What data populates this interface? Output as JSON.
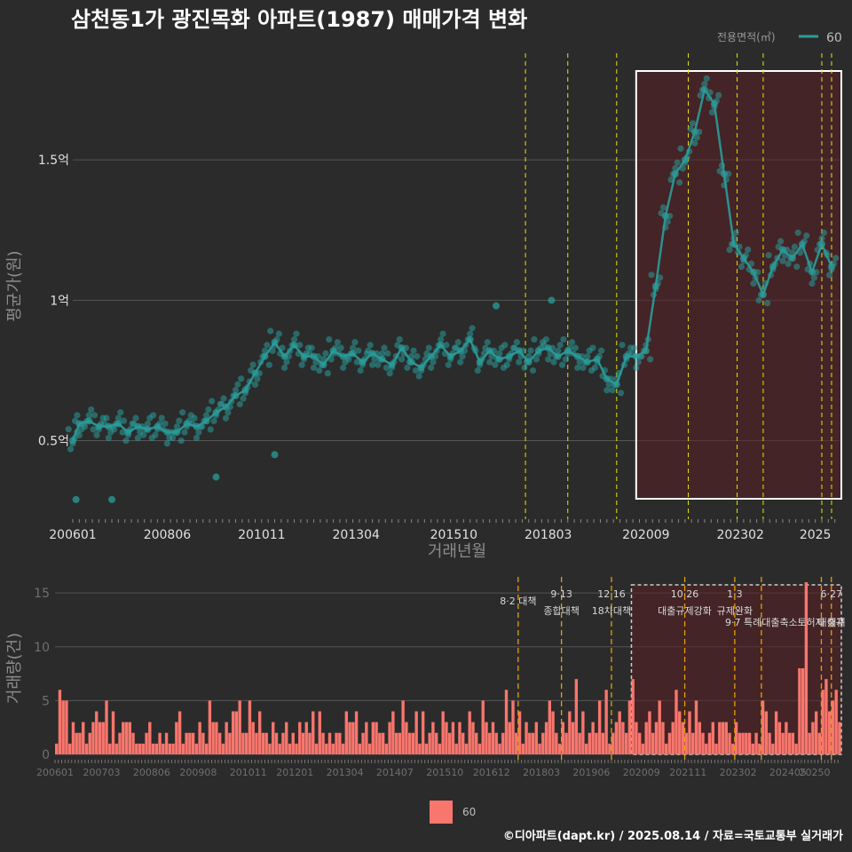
{
  "title": "삼천동1가 광진목화 아파트(1987) 매매가격 변화",
  "legend": {
    "title": "전용면적(㎡)",
    "label": "60"
  },
  "bottom_legend": {
    "label": "60"
  },
  "credit": "©디아파트(dapt.kr) / 2025.08.14 / 자료=국토교통부 실거래가",
  "colors": {
    "line": "#2a9d9b",
    "bar": "#f8766d",
    "highlight": "#5a1f22",
    "policy_line": "#e6e600",
    "policy_line_bottom": "#e69f00"
  },
  "chart_data": [
    {
      "type": "line",
      "xlabel": "거래년월",
      "ylabel": "평균가(원)",
      "x_ticks": [
        "200601",
        "200806",
        "201011",
        "201304",
        "201510",
        "201803",
        "202009",
        "202302",
        "2025"
      ],
      "y_ticks": [
        "0.5억",
        "1억",
        "1.5억"
      ],
      "ylim_eok": [
        0.22,
        1.88
      ],
      "series": [
        {
          "name": "60",
          "x": [
            "2006-01",
            "2006-03",
            "2006-06",
            "2006-09",
            "2006-12",
            "2007-03",
            "2007-06",
            "2007-09",
            "2007-12",
            "2008-03",
            "2008-06",
            "2008-09",
            "2008-12",
            "2009-03",
            "2009-06",
            "2009-09",
            "2009-12",
            "2010-03",
            "2010-06",
            "2010-09",
            "2010-12",
            "2011-03",
            "2011-06",
            "2011-09",
            "2011-12",
            "2012-03",
            "2012-06",
            "2012-09",
            "2012-12",
            "2013-03",
            "2013-06",
            "2013-09",
            "2013-12",
            "2014-03",
            "2014-06",
            "2014-09",
            "2014-12",
            "2015-03",
            "2015-06",
            "2015-09",
            "2015-12",
            "2016-03",
            "2016-06",
            "2016-09",
            "2016-12",
            "2017-03",
            "2017-06",
            "2017-09",
            "2017-12",
            "2018-03",
            "2018-06",
            "2018-09",
            "2018-12",
            "2019-03",
            "2019-06",
            "2019-09",
            "2019-12",
            "2020-03",
            "2020-06",
            "2020-09",
            "2020-12",
            "2021-03",
            "2021-06",
            "2021-09",
            "2021-12",
            "2022-03",
            "2022-06",
            "2022-09",
            "2022-12",
            "2023-03",
            "2023-06",
            "2023-09",
            "2023-12",
            "2024-03",
            "2024-06",
            "2024-09",
            "2024-12",
            "2025-03",
            "2025-06"
          ],
          "values": [
            0.5,
            0.56,
            0.57,
            0.55,
            0.55,
            0.56,
            0.53,
            0.55,
            0.54,
            0.55,
            0.53,
            0.53,
            0.56,
            0.55,
            0.57,
            0.6,
            0.62,
            0.66,
            0.68,
            0.74,
            0.8,
            0.85,
            0.8,
            0.84,
            0.8,
            0.8,
            0.77,
            0.82,
            0.8,
            0.81,
            0.78,
            0.81,
            0.79,
            0.77,
            0.83,
            0.78,
            0.76,
            0.8,
            0.84,
            0.8,
            0.82,
            0.86,
            0.78,
            0.82,
            0.79,
            0.8,
            0.82,
            0.78,
            0.82,
            0.83,
            0.8,
            0.82,
            0.8,
            0.78,
            0.79,
            0.72,
            0.7,
            0.8,
            0.8,
            0.82,
            1.05,
            1.3,
            1.45,
            1.5,
            1.6,
            1.75,
            1.7,
            1.45,
            1.2,
            1.15,
            1.1,
            1.02,
            1.12,
            1.18,
            1.15,
            1.2,
            1.1,
            1.2,
            1.12
          ]
        }
      ],
      "scatter_outliers": [
        {
          "x": "2006-02",
          "y": 0.29
        },
        {
          "x": "2007-01",
          "y": 0.29
        },
        {
          "x": "2009-09",
          "y": 0.37
        },
        {
          "x": "2011-03",
          "y": 0.45
        },
        {
          "x": "2018-04",
          "y": 1.0
        },
        {
          "x": "2016-11",
          "y": 0.98
        }
      ],
      "highlight_range": [
        "2020-06",
        "2025-08"
      ],
      "policy_dates": [
        "2017-08",
        "2018-09",
        "2019-12",
        "2021-10",
        "2023-01",
        "2023-09",
        "2025-03",
        "2025-06"
      ]
    },
    {
      "type": "bar",
      "xlabel": "",
      "ylabel": "거래량(건)",
      "x_ticks": [
        "200601",
        "200703",
        "200806",
        "200908",
        "201011",
        "201201",
        "201304",
        "201407",
        "201510",
        "201612",
        "201803",
        "201906",
        "202009",
        "202111",
        "202302",
        "202405",
        "20250"
      ],
      "y_ticks": [
        "0",
        "5",
        "10",
        "15"
      ],
      "ylim": [
        0,
        16
      ],
      "annotations": [
        {
          "date": "2017-08",
          "line1": "8·2 대책",
          "line2": ""
        },
        {
          "date": "2018-09",
          "line1": "9·13",
          "line2": "종합대책"
        },
        {
          "date": "2019-12",
          "line1": "12·16",
          "line2": "18차대책"
        },
        {
          "date": "2021-10",
          "line1": "10·26",
          "line2": "대출규제강화"
        },
        {
          "date": "2023-01",
          "line1": "1·3",
          "line2": "규제완화"
        },
        {
          "date": "2023-09",
          "line1": "",
          "line2": "9·7 특례대출축소"
        },
        {
          "date": "2025-03",
          "line1": "",
          "line2": "토허제 해제"
        },
        {
          "date": "2025-06",
          "line1": "6·27",
          "line2": "대출규"
        }
      ],
      "series": [
        {
          "name": "60",
          "monthly_counts": [
            1,
            6,
            5,
            5,
            1,
            3,
            2,
            2,
            3,
            1,
            2,
            3,
            4,
            3,
            3,
            5,
            1,
            4,
            1,
            2,
            3,
            3,
            3,
            2,
            1,
            1,
            1,
            2,
            3,
            1,
            1,
            2,
            1,
            2,
            1,
            1,
            3,
            4,
            1,
            2,
            2,
            2,
            1,
            3,
            2,
            1,
            5,
            3,
            3,
            2,
            1,
            3,
            2,
            4,
            4,
            5,
            2,
            2,
            5,
            3,
            2,
            4,
            2,
            2,
            1,
            3,
            2,
            1,
            2,
            3,
            1,
            2,
            1,
            3,
            2,
            3,
            2,
            4,
            1,
            4,
            2,
            1,
            2,
            1,
            2,
            2,
            1,
            4,
            3,
            3,
            4,
            1,
            2,
            3,
            1,
            3,
            3,
            2,
            2,
            1,
            3,
            4,
            2,
            2,
            5,
            3,
            2,
            2,
            4,
            1,
            4,
            1,
            2,
            3,
            2,
            1,
            4,
            3,
            2,
            3,
            1,
            3,
            2,
            1,
            4,
            3,
            2,
            1,
            5,
            3,
            2,
            3,
            2,
            1,
            2,
            6,
            3,
            5,
            2,
            4,
            1,
            3,
            2,
            2,
            3,
            1,
            2,
            3,
            5,
            4,
            2,
            1,
            3,
            2,
            4,
            3,
            7,
            2,
            4,
            1,
            2,
            3,
            2,
            5,
            2,
            6,
            1,
            2,
            3,
            4,
            3,
            2,
            5,
            7,
            3,
            2,
            1,
            3,
            4,
            2,
            3,
            5,
            3,
            1,
            2,
            3,
            6,
            4,
            3,
            2,
            4,
            2,
            5,
            3,
            2,
            1,
            2,
            3,
            1,
            3,
            3,
            3,
            2,
            1,
            3,
            2,
            2,
            2,
            2,
            1,
            2,
            1,
            5,
            4,
            2,
            1,
            4,
            3,
            2,
            3,
            2,
            2,
            1,
            8,
            8,
            16,
            2,
            3,
            4,
            2,
            6,
            7,
            4,
            5,
            6,
            3,
            6,
            5,
            4,
            5,
            2,
            3,
            6,
            2,
            1,
            2,
            1,
            2,
            1,
            2,
            1,
            3,
            2,
            1,
            3,
            1,
            1,
            2,
            1,
            3,
            2,
            1,
            3,
            1,
            2,
            1,
            1,
            2,
            2,
            1,
            1,
            3,
            2,
            1,
            1,
            2,
            1,
            1,
            2,
            1,
            1,
            3,
            2,
            1,
            2,
            1,
            1,
            2,
            1,
            2,
            2,
            1,
            3,
            2,
            1,
            1,
            3,
            2,
            2,
            1,
            2
          ]
        }
      ],
      "highlight_range": [
        "2020-06",
        "2025-08"
      ]
    }
  ]
}
